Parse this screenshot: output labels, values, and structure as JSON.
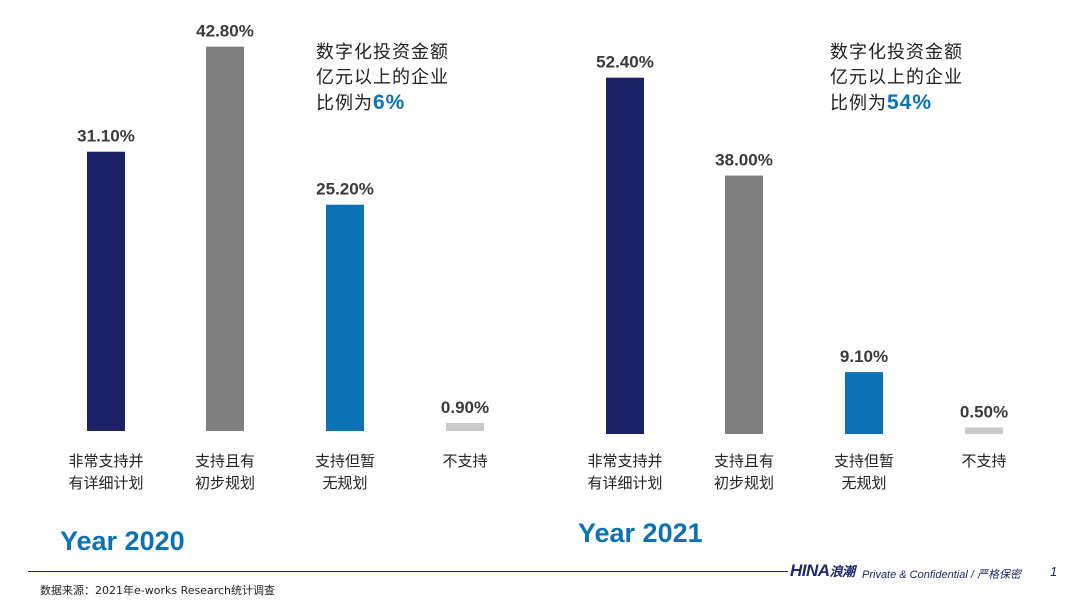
{
  "chart_data": [
    {
      "type": "bar",
      "year_label": "Year 2020",
      "categories": [
        [
          "非常支持并",
          "有详细计划"
        ],
        [
          "支持且有",
          "初步规划"
        ],
        [
          "支持但暂",
          "无规划"
        ],
        [
          "不支持"
        ]
      ],
      "values": [
        31.1,
        42.8,
        25.2,
        0.9
      ],
      "value_labels": [
        "31.10%",
        "42.80%",
        "25.20%",
        "0.90%"
      ],
      "colors": [
        "#1b2266",
        "#7f7f7f",
        "#0a72b5",
        "#c9c9c9"
      ],
      "annotation": {
        "lines": [
          "数字化投资金额",
          "亿元以上的企业",
          "比例为"
        ],
        "highlight": "6%"
      }
    },
    {
      "type": "bar",
      "year_label": "Year 2021",
      "categories": [
        [
          "非常支持并",
          "有详细计划"
        ],
        [
          "支持且有",
          "初步规划"
        ],
        [
          "支持但暂",
          "无规划"
        ],
        [
          "不支持"
        ]
      ],
      "values": [
        52.4,
        38.0,
        9.1,
        0.5
      ],
      "value_labels": [
        "52.40%",
        "38.00%",
        "9.10%",
        "0.50%"
      ],
      "colors": [
        "#1b2266",
        "#7f7f7f",
        "#0a72b5",
        "#c9c9c9"
      ],
      "annotation": {
        "lines": [
          "数字化投资金额",
          "亿元以上的企业",
          "比例为"
        ],
        "highlight": "54%"
      }
    }
  ],
  "footer": {
    "source": "数据来源：2021年e-works Research统计调查",
    "logo_text": "HINA",
    "logo_cn": "浪潮",
    "confidential": "Private & Confidential / 严格保密",
    "page_number": "1"
  }
}
